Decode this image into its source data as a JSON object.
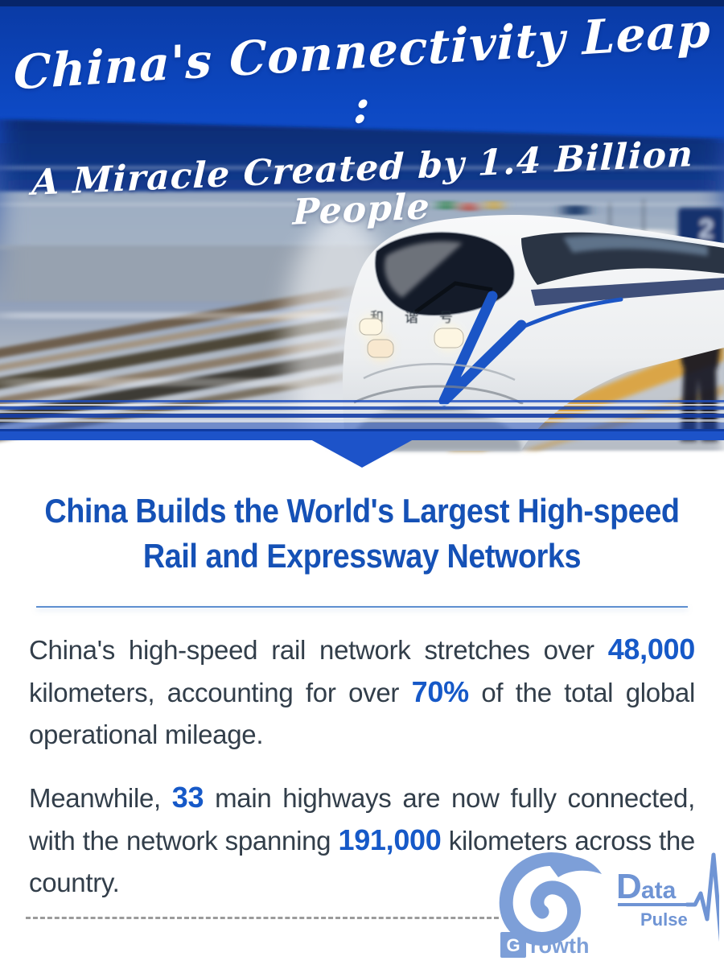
{
  "header": {
    "title_line1": "China's Connectivity Leap :",
    "title_line2": "A Miracle Created by 1.4 Billion People",
    "bg_color": "#0d49c4"
  },
  "photo": {
    "train_front_label": "和谐号",
    "platform_sign": "2"
  },
  "section": {
    "heading_line1": "China Builds the World's Largest High-speed",
    "heading_line2": "Rail and Expressway Networks",
    "heading_color": "#1551b6"
  },
  "paragraphs": [
    {
      "segments": [
        {
          "text": "China's high-speed rail network stretches over ",
          "highlight": false
        },
        {
          "text": "48,000",
          "highlight": true
        },
        {
          "text": " kilometers, accounting for over ",
          "highlight": false
        },
        {
          "text": "70%",
          "highlight": true
        },
        {
          "text": " of the total global operational mileage.",
          "highlight": false
        }
      ]
    },
    {
      "segments": [
        {
          "text": "Meanwhile, ",
          "highlight": false
        },
        {
          "text": "33",
          "highlight": true
        },
        {
          "text": " main highways are now fully connected, with the network spanning ",
          "highlight": false
        },
        {
          "text": "191,000",
          "highlight": true
        },
        {
          "text": " kilometers across the country.",
          "highlight": false
        }
      ]
    }
  ],
  "footer": {
    "growth_g": "G",
    "growth_rest": "rowth",
    "datapulse_d": "D",
    "datapulse_ata": "ata",
    "datapulse_pulse": "Pulse",
    "logo_color": "#7d9fd8"
  },
  "colors": {
    "highlight_blue": "#1659c8",
    "body_text": "#323e4a",
    "band_blue": "#1d53c9"
  }
}
